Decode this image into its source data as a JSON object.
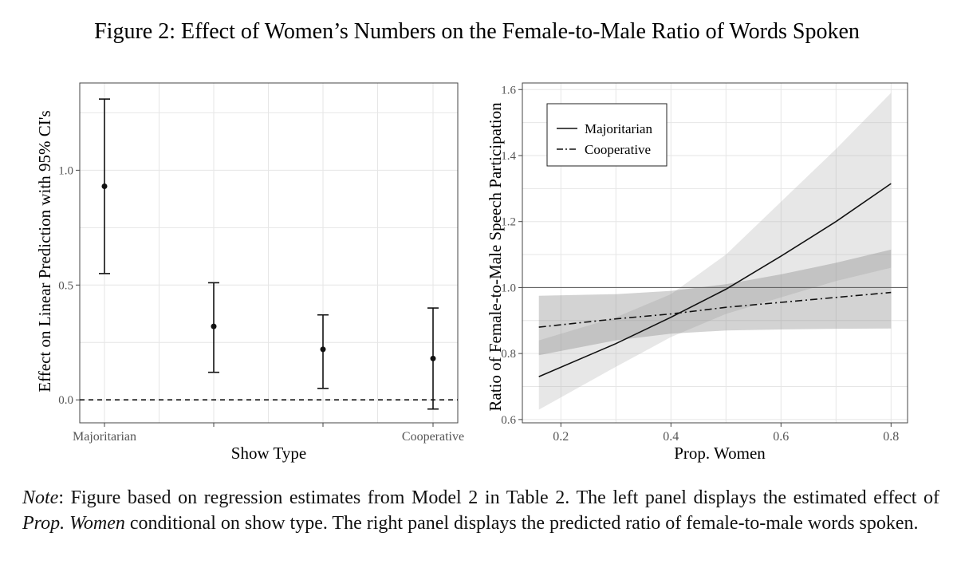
{
  "figure_title": "Figure 2: Effect of Women’s Numbers on the Female-to-Male Ratio of Words Spoken",
  "chart_data": [
    {
      "type": "errorbar",
      "xlabel": "Show Type",
      "ylabel": "Effect on Linear Prediction with 95% CI's",
      "categories": [
        "Majoritarian",
        "",
        "",
        "Cooperative"
      ],
      "estimates": [
        0.93,
        0.32,
        0.22,
        0.18
      ],
      "ci_lower": [
        0.55,
        0.12,
        0.05,
        -0.04
      ],
      "ci_upper": [
        1.31,
        0.51,
        0.37,
        0.4
      ],
      "yticks": [
        0.0,
        0.5,
        1.0
      ],
      "ytick_labels": [
        "0.0",
        "0.5",
        "1.0"
      ],
      "ylim": [
        -0.1,
        1.38
      ],
      "reference_line": 0.0,
      "reference_style": "dashed",
      "grid": true
    },
    {
      "type": "line",
      "xlabel": "Prop. Women",
      "ylabel": "Ratio of Female-to-Male Speech Participation",
      "xlim": [
        0.13,
        0.83
      ],
      "ylim": [
        0.59,
        1.62
      ],
      "xticks": [
        0.2,
        0.4,
        0.6,
        0.8
      ],
      "xtick_labels": [
        "0.2",
        "0.4",
        "0.6",
        "0.8"
      ],
      "yticks": [
        0.6,
        0.8,
        1.0,
        1.2,
        1.4,
        1.6
      ],
      "ytick_labels": [
        "0.6",
        "0.8",
        "1.0",
        "1.2",
        "1.4",
        "1.6"
      ],
      "reference_line": 1.0,
      "grid": true,
      "legend_position": "top-left",
      "series": [
        {
          "name": "Majoritarian",
          "style": "solid",
          "x": [
            0.16,
            0.3,
            0.4,
            0.5,
            0.6,
            0.7,
            0.8
          ],
          "y": [
            0.73,
            0.83,
            0.91,
            0.995,
            1.095,
            1.2,
            1.315
          ],
          "ci_lower": [
            0.63,
            0.76,
            0.85,
            0.92,
            0.97,
            1.02,
            1.06
          ],
          "ci_upper": [
            0.84,
            0.91,
            0.98,
            1.1,
            1.26,
            1.42,
            1.59
          ]
        },
        {
          "name": "Cooperative",
          "style": "dashdot",
          "x": [
            0.16,
            0.3,
            0.4,
            0.5,
            0.6,
            0.7,
            0.8
          ],
          "y": [
            0.88,
            0.905,
            0.92,
            0.94,
            0.955,
            0.97,
            0.985
          ],
          "ci_lower": [
            0.795,
            0.84,
            0.86,
            0.87,
            0.873,
            0.875,
            0.876
          ],
          "ci_upper": [
            0.975,
            0.98,
            0.99,
            1.01,
            1.04,
            1.075,
            1.115
          ]
        }
      ]
    }
  ],
  "note": {
    "label": "Note",
    "before": ": Figure based on regression estimates from Model 2 in Table 2. The left panel displays the estimated effect of ",
    "italic": "Prop. Women",
    "after": " conditional on show type. The right panel displays the predicted ratio of female-to-male words spoken."
  }
}
